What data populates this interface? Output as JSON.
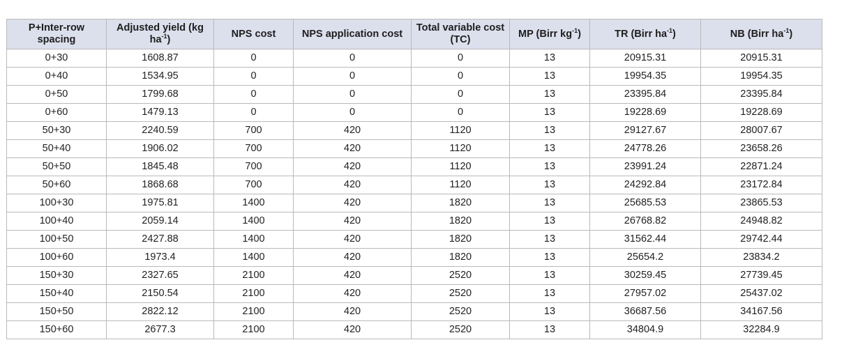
{
  "table": {
    "headers": [
      {
        "text": "P+Inter-row spacing"
      },
      {
        "text": "Adjusted yield (kg ha",
        "sup": "-1",
        "after": ")"
      },
      {
        "text": "NPS cost"
      },
      {
        "text": "NPS application cost"
      },
      {
        "text": "Total variable cost (TC)"
      },
      {
        "text": "MP (Birr kg",
        "sup": "-1",
        "after": ")"
      },
      {
        "text": "TR (Birr ha",
        "sup": "-1",
        "after": ")"
      },
      {
        "text": "NB (Birr ha",
        "sup": "-1",
        "after": ")"
      }
    ],
    "rows": [
      [
        "0+30",
        "1608.87",
        "0",
        "0",
        "0",
        "13",
        "20915.31",
        "20915.31"
      ],
      [
        "0+40",
        "1534.95",
        "0",
        "0",
        "0",
        "13",
        "19954.35",
        "19954.35"
      ],
      [
        "0+50",
        "1799.68",
        "0",
        "0",
        "0",
        "13",
        "23395.84",
        "23395.84"
      ],
      [
        "0+60",
        "1479.13",
        "0",
        "0",
        "0",
        "13",
        "19228.69",
        "19228.69"
      ],
      [
        "50+30",
        "2240.59",
        "700",
        "420",
        "1120",
        "13",
        "29127.67",
        "28007.67"
      ],
      [
        "50+40",
        "1906.02",
        "700",
        "420",
        "1120",
        "13",
        "24778.26",
        "23658.26"
      ],
      [
        "50+50",
        "1845.48",
        "700",
        "420",
        "1120",
        "13",
        "23991.24",
        "22871.24"
      ],
      [
        "50+60",
        "1868.68",
        "700",
        "420",
        "1120",
        "13",
        "24292.84",
        "23172.84"
      ],
      [
        "100+30",
        "1975.81",
        "1400",
        "420",
        "1820",
        "13",
        "25685.53",
        "23865.53"
      ],
      [
        "100+40",
        "2059.14",
        "1400",
        "420",
        "1820",
        "13",
        "26768.82",
        "24948.82"
      ],
      [
        "100+50",
        "2427.88",
        "1400",
        "420",
        "1820",
        "13",
        "31562.44",
        "29742.44"
      ],
      [
        "100+60",
        "1973.4",
        "1400",
        "420",
        "1820",
        "13",
        "25654.2",
        "23834.2"
      ],
      [
        "150+30",
        "2327.65",
        "2100",
        "420",
        "2520",
        "13",
        "30259.45",
        "27739.45"
      ],
      [
        "150+40",
        "2150.54",
        "2100",
        "420",
        "2520",
        "13",
        "27957.02",
        "25437.02"
      ],
      [
        "150+50",
        "2822.12",
        "2100",
        "420",
        "2520",
        "13",
        "36687.56",
        "34167.56"
      ],
      [
        "150+60",
        "2677.3",
        "2100",
        "420",
        "2520",
        "13",
        "34804.9",
        "32284.9"
      ]
    ]
  }
}
